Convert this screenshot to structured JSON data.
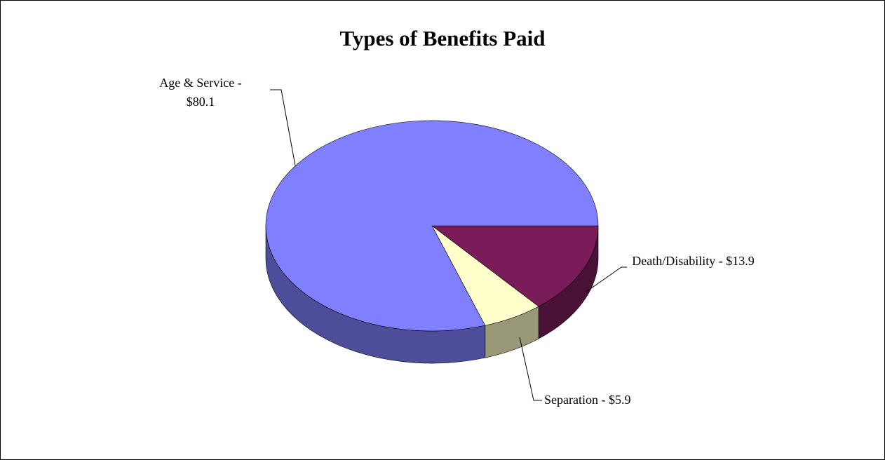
{
  "chart_data": {
    "type": "pie3d",
    "title": "Types of Benefits Paid",
    "values": [
      13.9,
      5.9,
      80.1
    ],
    "value_labels": [
      "Death/Disability - $13.9",
      "Separation - $5.9",
      "Age & Service - $80.1"
    ],
    "colors": [
      "#7b1c5a",
      "#ffffcc",
      "#8080ff"
    ]
  }
}
